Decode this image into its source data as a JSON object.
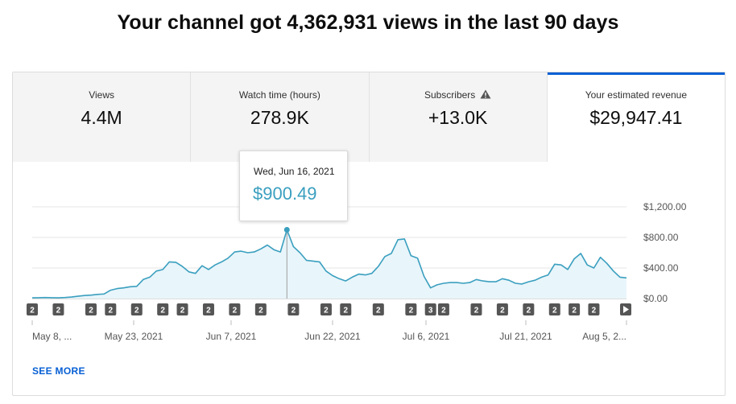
{
  "headline": "Your channel got 4,362,931 views in the last 90 days",
  "tabs": [
    {
      "label": "Views",
      "value": "4.4M"
    },
    {
      "label": "Watch time (hours)",
      "value": "278.9K"
    },
    {
      "label": "Subscribers",
      "value": "+13.0K",
      "icon": "warning-icon"
    },
    {
      "label": "Your estimated revenue",
      "value": "$29,947.41"
    }
  ],
  "tooltip": {
    "date": "Wed, Jun 16, 2021",
    "value": "$900.49"
  },
  "see_more": "SEE MORE",
  "colors": {
    "line": "#3a9fbf",
    "area": "#e8f5fa",
    "accent": "#065fd4"
  },
  "chart_data": {
    "type": "area",
    "x_start": "May 8, 2021",
    "x_end": "Aug 5, 2021",
    "x_ticks": [
      "May 8, ...",
      "May 23, 2021",
      "Jun 7, 2021",
      "Jun 22, 2021",
      "Jul 6, 2021",
      "Jul 21, 2021",
      "Aug 5, 2..."
    ],
    "y_ticks": [
      "$1,200.00",
      "$800.00",
      "$400.00",
      "$0.00"
    ],
    "ylim": [
      0,
      1200
    ],
    "values": [
      10,
      12,
      14,
      12,
      10,
      14,
      20,
      30,
      40,
      45,
      55,
      60,
      110,
      130,
      140,
      155,
      160,
      250,
      280,
      360,
      380,
      480,
      475,
      420,
      350,
      330,
      430,
      380,
      440,
      480,
      530,
      610,
      620,
      600,
      610,
      650,
      700,
      640,
      610,
      900,
      680,
      600,
      500,
      490,
      480,
      360,
      300,
      260,
      230,
      280,
      320,
      310,
      330,
      420,
      550,
      590,
      770,
      780,
      560,
      530,
      290,
      140,
      180,
      200,
      210,
      210,
      200,
      210,
      250,
      230,
      220,
      220,
      260,
      240,
      200,
      190,
      220,
      240,
      280,
      310,
      450,
      440,
      380,
      520,
      590,
      440,
      400,
      540,
      460,
      360,
      280,
      270
    ],
    "highlight": {
      "date": "Wed, Jun 16, 2021",
      "value": 900.49
    },
    "markers": [
      {
        "label": "2",
        "index": 0
      },
      {
        "label": "2",
        "index": 4
      },
      {
        "label": "2",
        "index": 9
      },
      {
        "label": "2",
        "index": 12
      },
      {
        "label": "2",
        "index": 16
      },
      {
        "label": "2",
        "index": 20
      },
      {
        "label": "2",
        "index": 23
      },
      {
        "label": "2",
        "index": 27
      },
      {
        "label": "2",
        "index": 31
      },
      {
        "label": "2",
        "index": 35
      },
      {
        "label": "2",
        "index": 40
      },
      {
        "label": "2",
        "index": 45
      },
      {
        "label": "2",
        "index": 48
      },
      {
        "label": "2",
        "index": 53
      },
      {
        "label": "2",
        "index": 58
      },
      {
        "label": "3",
        "index": 61
      },
      {
        "label": "2",
        "index": 63
      },
      {
        "label": "2",
        "index": 68
      },
      {
        "label": "2",
        "index": 72
      },
      {
        "label": "2",
        "index": 76
      },
      {
        "label": "2",
        "index": 80
      },
      {
        "label": "2",
        "index": 83
      },
      {
        "label": "2",
        "index": 86
      }
    ]
  }
}
